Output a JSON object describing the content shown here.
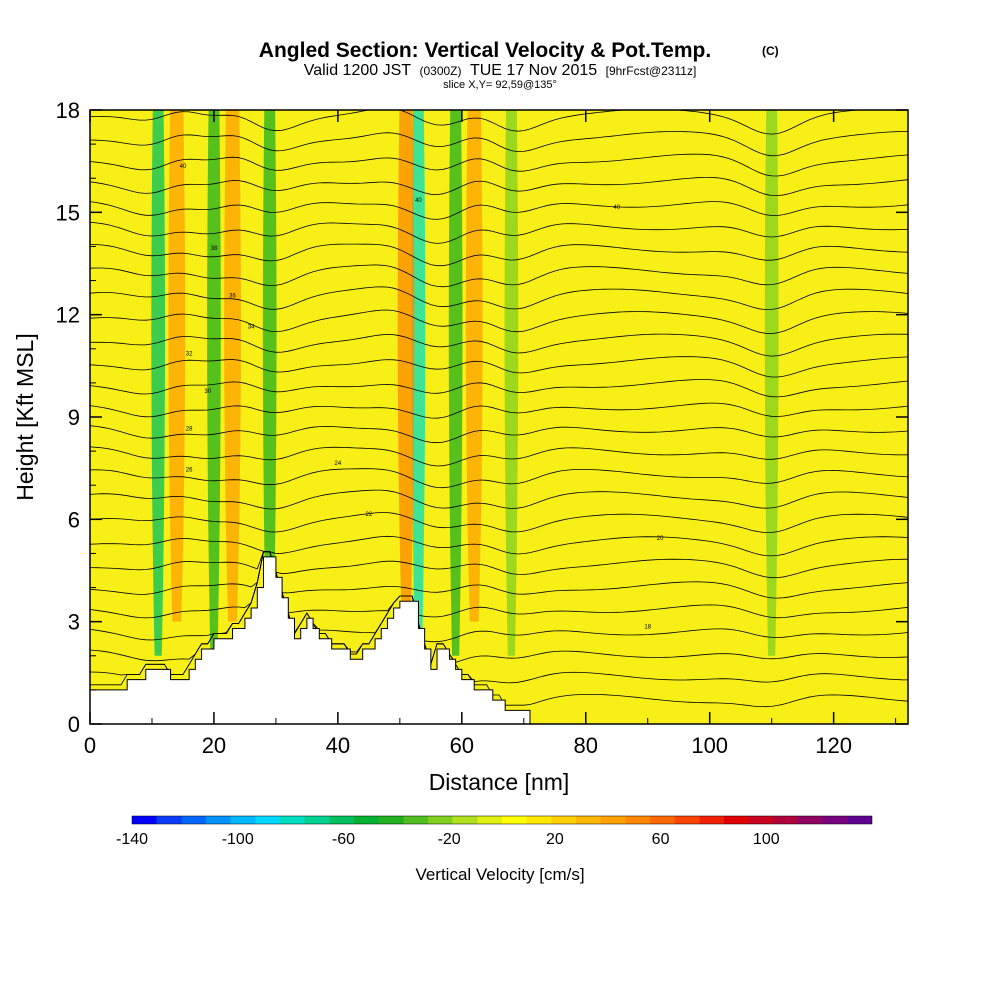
{
  "chart_data": {
    "type": "heatmap",
    "title": "Angled Section: Vertical Velocity & Pot.Temp.",
    "title_unit": "(C)",
    "subtitle": {
      "valid": "Valid 1200 JST",
      "zulu": "(0300Z)",
      "date": "TUE 17 Nov 2015",
      "forecast": "[9hrFcst@2311z]"
    },
    "slice_label": "slice X,Y= 92,59@135°",
    "xlabel": "Distance [nm]",
    "ylabel": "Height [Kft MSL]",
    "xlim": [
      0,
      132
    ],
    "ylim": [
      0,
      18
    ],
    "x_ticks": [
      "0",
      "20",
      "40",
      "60",
      "80",
      "100",
      "120"
    ],
    "x_tick_values": [
      0,
      20,
      40,
      60,
      80,
      100,
      120
    ],
    "y_ticks": [
      "0",
      "3",
      "6",
      "9",
      "12",
      "15",
      "18"
    ],
    "y_tick_values": [
      0,
      3,
      6,
      9,
      12,
      15,
      18
    ],
    "colorbar": {
      "label": "Vertical Velocity [cm/s]",
      "tick_labels": [
        "-140",
        "-100",
        "-60",
        "-20",
        "20",
        "60",
        "100"
      ],
      "tick_values": [
        -140,
        -100,
        -60,
        -20,
        20,
        60,
        100
      ],
      "range": [
        -140,
        140
      ],
      "colors": [
        "#0000ff",
        "#0a3cff",
        "#0066ff",
        "#0090ff",
        "#00b8ff",
        "#00d8ff",
        "#00e0c0",
        "#00d090",
        "#00c060",
        "#00b030",
        "#20b020",
        "#50c020",
        "#80d020",
        "#b0e020",
        "#e0f010",
        "#ffff00",
        "#ffe800",
        "#ffd000",
        "#ffb800",
        "#ffa000",
        "#ff8800",
        "#ff6800",
        "#ff4400",
        "#f02000",
        "#e00000",
        "#c8001e",
        "#b0003c",
        "#900060",
        "#780080",
        "#600090"
      ]
    },
    "contour_labels": [
      "40",
      "40",
      "40",
      "38",
      "36",
      "34",
      "32",
      "30",
      "28",
      "26",
      "24",
      "22",
      "20",
      "18"
    ],
    "vertical_velocity_features": [
      {
        "x": 11,
        "kind": "downdraft",
        "w": -60
      },
      {
        "x": 20,
        "kind": "downdraft",
        "w": -40
      },
      {
        "x": 29,
        "kind": "downdraft",
        "w": -40
      },
      {
        "x": 53,
        "kind": "downdraft",
        "w": -80
      },
      {
        "x": 59,
        "kind": "downdraft",
        "w": -40
      },
      {
        "x": 68,
        "kind": "downdraft",
        "w": -20
      },
      {
        "x": 110,
        "kind": "downdraft",
        "w": -20
      },
      {
        "x": 14,
        "kind": "updraft",
        "w": 40
      },
      {
        "x": 23,
        "kind": "updraft",
        "w": 40
      },
      {
        "x": 51,
        "kind": "updraft",
        "w": 50
      },
      {
        "x": 62,
        "kind": "updraft",
        "w": 40
      }
    ],
    "terrain_kft": [
      [
        0,
        1.0
      ],
      [
        6,
        1.0
      ],
      [
        6,
        1.3
      ],
      [
        9,
        1.3
      ],
      [
        9,
        1.6
      ],
      [
        13,
        1.6
      ],
      [
        13,
        1.3
      ],
      [
        16,
        1.3
      ],
      [
        16,
        1.6
      ],
      [
        17,
        1.6
      ],
      [
        17,
        1.9
      ],
      [
        18,
        1.9
      ],
      [
        18,
        2.2
      ],
      [
        20,
        2.2
      ],
      [
        20,
        2.5
      ],
      [
        23,
        2.5
      ],
      [
        23,
        2.8
      ],
      [
        25,
        2.8
      ],
      [
        25,
        3.1
      ],
      [
        26,
        3.1
      ],
      [
        26,
        3.4
      ],
      [
        27,
        3.4
      ],
      [
        27,
        4.0
      ],
      [
        28,
        4.0
      ],
      [
        28,
        4.9
      ],
      [
        30,
        4.9
      ],
      [
        30,
        4.3
      ],
      [
        31,
        4.3
      ],
      [
        31,
        3.7
      ],
      [
        32,
        3.7
      ],
      [
        32,
        3.1
      ],
      [
        33,
        3.1
      ],
      [
        33,
        2.5
      ],
      [
        34,
        2.5
      ],
      [
        34,
        2.8
      ],
      [
        35,
        2.8
      ],
      [
        35,
        3.1
      ],
      [
        36,
        3.1
      ],
      [
        36,
        2.8
      ],
      [
        37,
        2.8
      ],
      [
        37,
        2.5
      ],
      [
        39,
        2.5
      ],
      [
        39,
        2.2
      ],
      [
        42,
        2.2
      ],
      [
        42,
        1.9
      ],
      [
        44,
        1.9
      ],
      [
        44,
        2.2
      ],
      [
        46,
        2.2
      ],
      [
        46,
        2.5
      ],
      [
        47,
        2.5
      ],
      [
        47,
        2.8
      ],
      [
        48,
        2.8
      ],
      [
        48,
        3.1
      ],
      [
        49,
        3.1
      ],
      [
        49,
        3.4
      ],
      [
        50,
        3.4
      ],
      [
        50,
        3.6
      ],
      [
        53,
        3.6
      ],
      [
        53,
        2.8
      ],
      [
        54,
        2.8
      ],
      [
        54,
        2.2
      ],
      [
        55,
        2.2
      ],
      [
        55,
        1.6
      ],
      [
        56,
        1.6
      ],
      [
        56,
        2.2
      ],
      [
        58,
        2.2
      ],
      [
        58,
        1.9
      ],
      [
        59,
        1.9
      ],
      [
        59,
        1.6
      ],
      [
        60,
        1.6
      ],
      [
        60,
        1.3
      ],
      [
        62,
        1.3
      ],
      [
        62,
        1.0
      ],
      [
        65,
        1.0
      ],
      [
        65,
        0.7
      ],
      [
        67,
        0.7
      ],
      [
        67,
        0.4
      ],
      [
        71,
        0.4
      ],
      [
        71,
        0.0
      ]
    ]
  }
}
